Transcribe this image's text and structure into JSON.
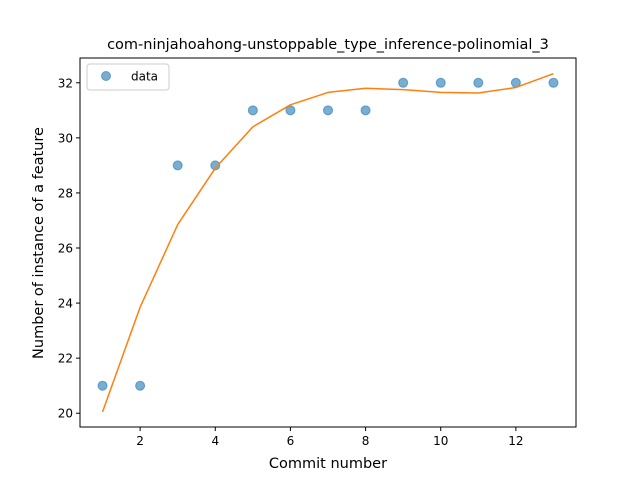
{
  "chart_data": {
    "type": "scatter",
    "title": "com-ninjahoahong-unstoppable_type_inference-polinomial_3",
    "xlabel": "Commit number",
    "ylabel": "Number of instance of a feature",
    "xlim": [
      0.4,
      13.6
    ],
    "ylim": [
      19.5,
      32.9
    ],
    "xticks": [
      2,
      4,
      6,
      8,
      10,
      12
    ],
    "yticks": [
      20,
      22,
      24,
      26,
      28,
      30,
      32
    ],
    "legend": {
      "entries": [
        "data"
      ],
      "placement": "top-left"
    },
    "series": [
      {
        "name": "data",
        "kind": "scatter",
        "color": "#1f77b4",
        "x": [
          1,
          2,
          3,
          4,
          5,
          6,
          7,
          8,
          9,
          10,
          11,
          12,
          13
        ],
        "y": [
          21,
          21,
          29,
          29,
          31,
          31,
          31,
          31,
          32,
          32,
          32,
          32,
          32
        ]
      },
      {
        "kind": "line",
        "color": "#ff7f0e",
        "x": [
          1,
          2,
          3,
          4,
          5,
          6,
          7,
          8,
          9,
          10,
          11,
          12,
          13
        ],
        "y": [
          20.05,
          23.85,
          26.85,
          28.9,
          30.4,
          31.2,
          31.65,
          31.8,
          31.75,
          31.65,
          31.63,
          31.83,
          32.33
        ]
      }
    ]
  }
}
